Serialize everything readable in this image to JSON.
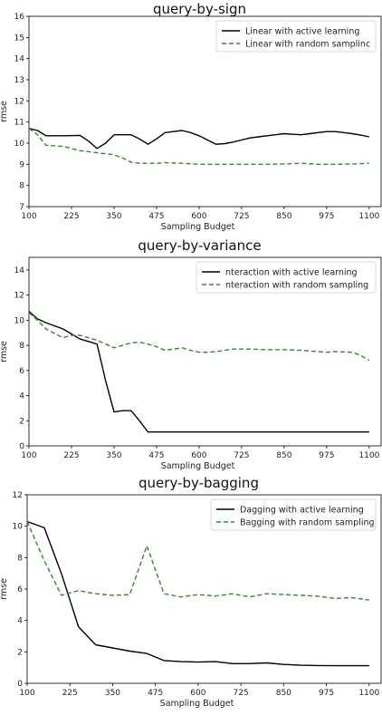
{
  "chart_data": [
    {
      "type": "line",
      "title": "query-by-sign",
      "xlabel": "Sampling Budget",
      "ylabel": "rmse",
      "xlim": [
        100,
        1135
      ],
      "ylim": [
        7,
        16
      ],
      "xticks": [
        100,
        225,
        350,
        475,
        600,
        725,
        850,
        975,
        1100
      ],
      "yticks": [
        7,
        8,
        9,
        10,
        11,
        12,
        13,
        14,
        15,
        16
      ],
      "legend_position": "top-right",
      "series": [
        {
          "name": "Linear with active learning",
          "color": "#000000",
          "style": "solid",
          "x": [
            100,
            125,
            150,
            200,
            250,
            275,
            300,
            325,
            350,
            375,
            400,
            425,
            450,
            475,
            500,
            525,
            550,
            575,
            600,
            625,
            650,
            675,
            700,
            725,
            750,
            775,
            800,
            825,
            850,
            875,
            900,
            925,
            950,
            975,
            1000,
            1025,
            1050,
            1075,
            1100
          ],
          "y": [
            10.7,
            10.6,
            10.35,
            10.35,
            10.37,
            10.1,
            9.75,
            10.0,
            10.4,
            10.4,
            10.4,
            10.2,
            9.95,
            10.2,
            10.5,
            10.55,
            10.6,
            10.5,
            10.35,
            10.15,
            9.95,
            9.98,
            10.05,
            10.15,
            10.25,
            10.3,
            10.35,
            10.4,
            10.45,
            10.42,
            10.4,
            10.45,
            10.5,
            10.55,
            10.55,
            10.5,
            10.45,
            10.38,
            10.3
          ]
        },
        {
          "name": "Linear with random samplinc",
          "color": "#2e8b2e",
          "style": "dashed",
          "x": [
            100,
            125,
            150,
            200,
            250,
            300,
            350,
            375,
            400,
            425,
            450,
            475,
            500,
            550,
            600,
            650,
            700,
            750,
            800,
            850,
            900,
            950,
            1000,
            1050,
            1100
          ],
          "y": [
            10.7,
            10.4,
            9.9,
            9.85,
            9.65,
            9.55,
            9.45,
            9.3,
            9.1,
            9.05,
            9.05,
            9.05,
            9.08,
            9.05,
            9.0,
            9.0,
            9.0,
            9.0,
            9.0,
            9.02,
            9.05,
            9.0,
            9.0,
            9.02,
            9.05
          ]
        }
      ]
    },
    {
      "type": "line",
      "title": "query-by-variance",
      "xlabel": "Sampling Budget",
      "ylabel": "rmse",
      "xlim": [
        100,
        1135
      ],
      "ylim": [
        0,
        15
      ],
      "xticks": [
        100,
        225,
        350,
        475,
        600,
        725,
        850,
        975,
        1100
      ],
      "yticks": [
        0,
        2,
        4,
        6,
        8,
        10,
        12,
        14
      ],
      "legend_position": "top-right",
      "series": [
        {
          "name": "nteraction with active learning",
          "color": "#000000",
          "style": "solid",
          "x": [
            100,
            125,
            150,
            200,
            250,
            300,
            325,
            350,
            375,
            400,
            425,
            450,
            475,
            500,
            600,
            700,
            800,
            900,
            1000,
            1100
          ],
          "y": [
            10.7,
            10.1,
            9.8,
            9.3,
            8.5,
            8.1,
            5.2,
            2.7,
            2.8,
            2.8,
            2.0,
            1.1,
            1.1,
            1.1,
            1.1,
            1.1,
            1.1,
            1.1,
            1.1,
            1.1
          ]
        },
        {
          "name": "nteraction with random sampling",
          "color": "#2e8b2e",
          "style": "dashed",
          "x": [
            100,
            125,
            150,
            200,
            225,
            250,
            300,
            350,
            375,
            400,
            425,
            450,
            475,
            500,
            525,
            550,
            575,
            600,
            625,
            650,
            675,
            700,
            750,
            800,
            850,
            900,
            950,
            975,
            1000,
            1050,
            1075,
            1100
          ],
          "y": [
            10.6,
            10.0,
            9.3,
            8.6,
            8.8,
            8.8,
            8.4,
            7.8,
            8.0,
            8.2,
            8.25,
            8.1,
            7.9,
            7.6,
            7.7,
            7.8,
            7.6,
            7.45,
            7.45,
            7.5,
            7.6,
            7.7,
            7.7,
            7.65,
            7.65,
            7.6,
            7.5,
            7.45,
            7.5,
            7.45,
            7.2,
            6.8
          ]
        }
      ]
    },
    {
      "type": "line",
      "title": "query-by-bagging",
      "xlabel": "Sampling Budget",
      "ylabel": "rmse",
      "xlim": [
        100,
        1135
      ],
      "ylim": [
        0,
        12
      ],
      "xticks": [
        100,
        225,
        350,
        475,
        600,
        725,
        850,
        975,
        1100
      ],
      "yticks": [
        0,
        2,
        4,
        6,
        8,
        10,
        12
      ],
      "legend_position": "top-right",
      "series": [
        {
          "name": "Dagging with active learning",
          "color": "#000000",
          "style": "solid",
          "x": [
            100,
            150,
            200,
            250,
            300,
            350,
            400,
            450,
            500,
            550,
            600,
            650,
            700,
            750,
            800,
            850,
            900,
            950,
            1000,
            1050,
            1100
          ],
          "y": [
            10.3,
            9.9,
            7.0,
            3.6,
            2.45,
            2.25,
            2.05,
            1.9,
            1.45,
            1.38,
            1.35,
            1.38,
            1.25,
            1.25,
            1.3,
            1.2,
            1.15,
            1.13,
            1.12,
            1.12,
            1.12
          ]
        },
        {
          "name": "Bagging with random sampling",
          "color": "#2e8b2e",
          "style": "dashed",
          "x": [
            100,
            150,
            200,
            250,
            300,
            350,
            400,
            450,
            500,
            550,
            600,
            650,
            700,
            750,
            800,
            850,
            900,
            950,
            1000,
            1050,
            1100
          ],
          "y": [
            10.3,
            7.8,
            5.6,
            5.9,
            5.7,
            5.6,
            5.65,
            8.75,
            5.7,
            5.5,
            5.65,
            5.55,
            5.7,
            5.5,
            5.7,
            5.65,
            5.6,
            5.55,
            5.4,
            5.45,
            5.3
          ]
        }
      ]
    }
  ]
}
